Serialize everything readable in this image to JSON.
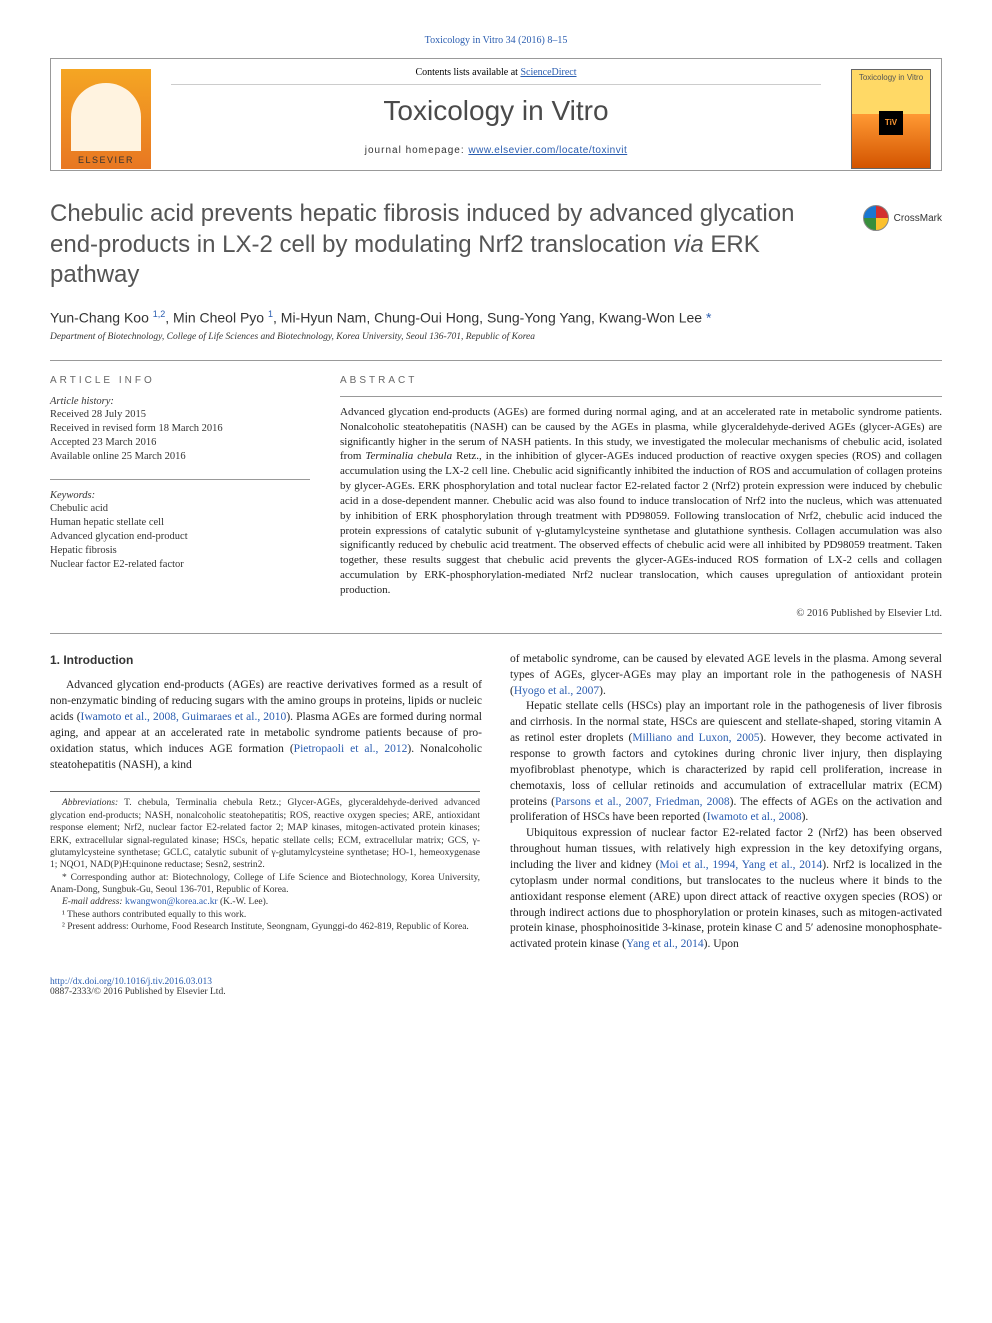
{
  "running_header": "Toxicology in Vitro 34 (2016) 8–15",
  "masthead": {
    "contents_text": "Contents lists available at ",
    "contents_link_label": "ScienceDirect",
    "journal_title": "Toxicology in Vitro",
    "homepage_label": "journal homepage: ",
    "homepage_link": "www.elsevier.com/locate/toxinvit",
    "elsevier_label": "ELSEVIER",
    "cover_title": "Toxicology in Vitro",
    "cover_logo": "TiV"
  },
  "article": {
    "title_pre": "Chebulic acid prevents hepatic fibrosis induced by advanced glycation end-products in LX-2 cell by modulating Nrf2 translocation ",
    "title_em": "via",
    "title_post": " ERK pathway",
    "crossmark": "CrossMark",
    "authors_html": "Yun-Chang Koo <sup>1,2</sup>, Min Cheol Pyo <sup>1</sup>, Mi-Hyun Nam, Chung-Oui Hong, Sung-Yong Yang, Kwang-Won Lee <span class='star'>*</span>",
    "affiliation": "Department of Biotechnology, College of Life Sciences and Biotechnology, Korea University, Seoul 136-701, Republic of Korea"
  },
  "info_label": "ARTICLE INFO",
  "abstract_label": "ABSTRACT",
  "history": {
    "header": "Article history:",
    "lines": [
      "Received 28 July 2015",
      "Received in revised form 18 March 2016",
      "Accepted 23 March 2016",
      "Available online 25 March 2016"
    ]
  },
  "keywords": {
    "header": "Keywords:",
    "lines": [
      "Chebulic acid",
      "Human hepatic stellate cell",
      "Advanced glycation end-product",
      "Hepatic fibrosis",
      "Nuclear factor E2-related factor"
    ]
  },
  "abstract": "Advanced glycation end-products (AGEs) are formed during normal aging, and at an accelerated rate in metabolic syndrome patients. Nonalcoholic steatohepatitis (NASH) can be caused by the AGEs in plasma, while glyceraldehyde-derived AGEs (glycer-AGEs) are significantly higher in the serum of NASH patients. In this study, we investigated the molecular mechanisms of chebulic acid, isolated from Terminalia chebula Retz., in the inhibition of glycer-AGEs induced production of reactive oxygen species (ROS) and collagen accumulation using the LX-2 cell line. Chebulic acid significantly inhibited the induction of ROS and accumulation of collagen proteins by glycer-AGEs. ERK phosphorylation and total nuclear factor E2-related factor 2 (Nrf2) protein expression were induced by chebulic acid in a dose-dependent manner. Chebulic acid was also found to induce translocation of Nrf2 into the nucleus, which was attenuated by inhibition of ERK phosphorylation through treatment with PD98059. Following translocation of Nrf2, chebulic acid induced the protein expressions of catalytic subunit of γ-glutamylcysteine synthetase and glutathione synthesis. Collagen accumulation was also significantly reduced by chebulic acid treatment. The observed effects of chebulic acid were all inhibited by PD98059 treatment. Taken together, these results suggest that chebulic acid prevents the glycer-AGEs-induced ROS formation of LX-2 cells and collagen accumulation by ERK-phosphorylation-mediated Nrf2 nuclear translocation, which causes upregulation of antioxidant protein production.",
  "copyright": "© 2016 Published by Elsevier Ltd.",
  "section1_heading": "1. Introduction",
  "para1_a": "Advanced glycation end-products (AGEs) are reactive derivatives formed as a result of non-enzymatic binding of reducing sugars with the amino groups in proteins, lipids or nucleic acids (",
  "para1_link1": "Iwamoto et al., 2008, Guimaraes et al., 2010",
  "para1_b": "). Plasma AGEs are formed during normal aging, and appear at an accelerated rate in metabolic syndrome patients because of pro-oxidation status, which induces AGE formation (",
  "para1_link2": "Pietropaoli et al., 2012",
  "para1_c": "). Nonalcoholic steatohepatitis (NASH), a kind",
  "para1_d": "of metabolic syndrome, can be caused by elevated AGE levels in the plasma. Among several types of AGEs, glycer-AGEs may play an important role in the pathogenesis of NASH (",
  "para1_link3": "Hyogo et al., 2007",
  "para1_e": ").",
  "para2_a": "Hepatic stellate cells (HSCs) play an important role in the pathogenesis of liver fibrosis and cirrhosis. In the normal state, HSCs are quiescent and stellate-shaped, storing vitamin A as retinol ester droplets (",
  "para2_link1": "Milliano and Luxon, 2005",
  "para2_b": "). However, they become activated in response to growth factors and cytokines during chronic liver injury, then displaying myofibroblast phenotype, which is characterized by rapid cell proliferation, increase in chemotaxis, loss of cellular retinoids and accumulation of extracellular matrix (ECM) proteins (",
  "para2_link2": "Parsons et al., 2007, Friedman, 2008",
  "para2_c": "). The effects of AGEs on the activation and proliferation of HSCs have been reported (",
  "para2_link3": "Iwamoto et al., 2008",
  "para2_d": ").",
  "para3_a": "Ubiquitous expression of nuclear factor E2-related factor 2 (Nrf2) has been observed throughout human tissues, with relatively high expression in the key detoxifying organs, including the liver and kidney (",
  "para3_link1": "Moi et al., 1994, Yang et al., 2014",
  "para3_b": "). Nrf2 is localized in the cytoplasm under normal conditions, but translocates to the nucleus where it binds to the antioxidant response element (ARE) upon direct attack of reactive oxygen species (ROS) or through indirect actions due to phosphorylation or protein kinases, such as mitogen-activated protein kinase, phosphoinositide 3-kinase, protein kinase C and 5′ adenosine monophosphate-activated protein kinase (",
  "para3_link2": "Yang et al., 2014",
  "para3_c": "). Upon",
  "footnotes": {
    "abbrev_label": "Abbreviations:",
    "abbrev_text": " T. chebula, Terminalia chebula Retz.; Glycer-AGEs, glyceraldehyde-derived advanced glycation end-products; NASH, nonalcoholic steatohepatitis; ROS, reactive oxygen species; ARE, antioxidant response element; Nrf2, nuclear factor E2-related factor 2; MAP kinases, mitogen-activated protein kinases; ERK, extracellular signal-regulated kinase; HSCs, hepatic stellate cells; ECM, extracellular matrix; GCS, γ-glutamylcysteine synthetase; GCLC, catalytic subunit of γ-glutamylcysteine synthetase; HO-1, hemeoxygenase 1; NQO1, NAD(P)H:quinone reductase; Sesn2, sestrin2.",
    "corr": "* Corresponding author at: Biotechnology, College of Life Science and Biotechnology, Korea University, Anam-Dong, Sungbuk-Gu, Seoul 136-701, Republic of Korea.",
    "email_label": "E-mail address: ",
    "email": "kwangwon@korea.ac.kr",
    "email_suffix": " (K.-W. Lee).",
    "fn1": "¹ These authors contributed equally to this work.",
    "fn2": "² Present address: Ourhome, Food Research Institute, Seongnam, Gyunggi-do 462-819, Republic of Korea."
  },
  "footer": {
    "doi": "http://dx.doi.org/10.1016/j.tiv.2016.03.013",
    "issn_copy": "0887-2333/© 2016 Published by Elsevier Ltd."
  },
  "colors": {
    "link": "#2a5db0",
    "body_text": "#222222",
    "heading_gray": "#555555"
  }
}
